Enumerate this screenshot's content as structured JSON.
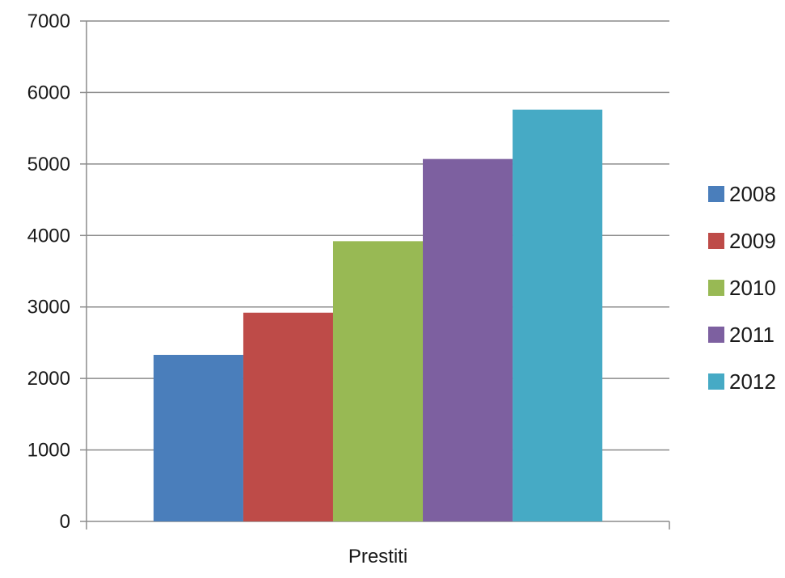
{
  "chart_data": {
    "type": "bar",
    "categories": [
      "Prestiti"
    ],
    "series": [
      {
        "name": "2008",
        "values": [
          2330
        ],
        "color": "#4a7ebb"
      },
      {
        "name": "2009",
        "values": [
          2920
        ],
        "color": "#be4b48"
      },
      {
        "name": "2010",
        "values": [
          3920
        ],
        "color": "#98b954"
      },
      {
        "name": "2011",
        "values": [
          5070
        ],
        "color": "#7d60a0"
      },
      {
        "name": "2012",
        "values": [
          5760
        ],
        "color": "#46aac5"
      }
    ],
    "yticks": [
      "0",
      "1000",
      "2000",
      "3000",
      "4000",
      "5000",
      "6000",
      "7000"
    ],
    "ylim": [
      0,
      7000
    ],
    "grid": true,
    "legend": "right"
  }
}
